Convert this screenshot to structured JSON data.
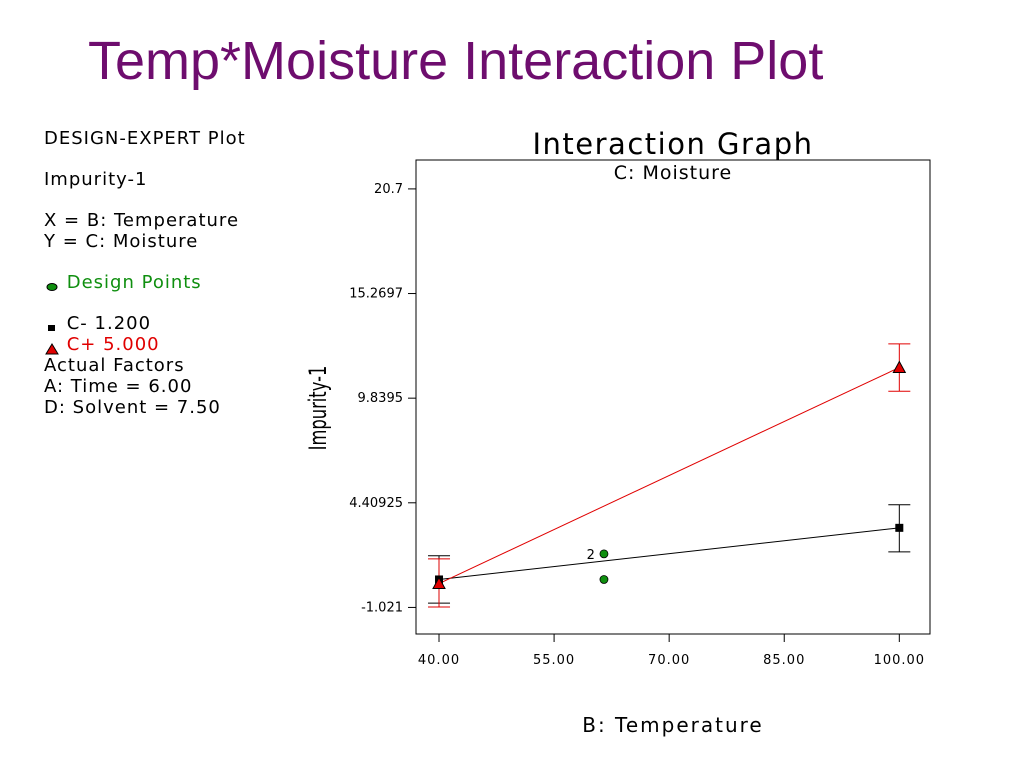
{
  "slide_title": "Temp*Moisture Interaction Plot",
  "legend": {
    "header": "DESIGN-EXPERT Plot",
    "response": "Impurity-1",
    "x_def": "X = B: Temperature",
    "y_def": "Y = C: Moisture",
    "design_points": "Design Points",
    "low_level": "C- 1.200",
    "high_level": "C+ 5.000",
    "actual_factors": "Actual Factors",
    "factor_a": "A: Time = 6.00",
    "factor_d": "D: Solvent = 7.50"
  },
  "colors": {
    "title": "#6e0d6e",
    "low_series": "#000000",
    "high_series": "#e00000",
    "design_points": "#0f8f0f"
  },
  "chart_data": {
    "type": "line",
    "title": "Interaction Graph",
    "subtitle": "C: Moisture",
    "xlabel": "B: Temperature",
    "ylabel": "Impurity-1",
    "xlim": [
      37,
      104
    ],
    "ylim": [
      -2.4,
      22.2
    ],
    "x_ticks": [
      "40.00",
      "55.00",
      "70.00",
      "85.00",
      "100.00"
    ],
    "x_tick_values": [
      40,
      55,
      70,
      85,
      100
    ],
    "y_ticks": [
      "-1.021",
      "4.40925",
      "9.8395",
      "15.2697",
      "20.7"
    ],
    "y_tick_values": [
      -1.021,
      4.40925,
      9.8395,
      15.2697,
      20.7
    ],
    "series": [
      {
        "name": "C- 1.200",
        "marker": "square",
        "color": "#000000",
        "x": [
          40,
          100
        ],
        "y": [
          0.43,
          3.11
        ],
        "error_low": [
          -0.8,
          1.86
        ],
        "error_high": [
          1.66,
          4.31
        ]
      },
      {
        "name": "C+ 5.000",
        "marker": "triangle",
        "color": "#e00000",
        "x": [
          40,
          100
        ],
        "y": [
          0.22,
          11.43
        ],
        "error_low": [
          -1.0,
          10.2
        ],
        "error_high": [
          1.5,
          12.66
        ]
      }
    ],
    "design_points": [
      {
        "x": 61.5,
        "y": 1.76,
        "label": "2"
      },
      {
        "x": 61.5,
        "y": 0.43,
        "label": ""
      }
    ],
    "grid": false,
    "legend_placement": "left, outside plot"
  }
}
